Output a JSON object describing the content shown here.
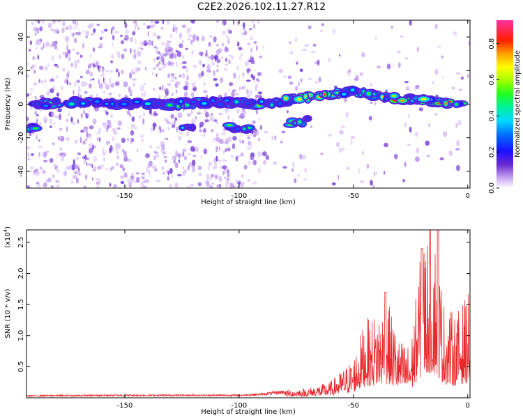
{
  "title": "C2E2.2026.102.11.27.R12",
  "chart_data": [
    {
      "type": "heatmap",
      "title": "C2E2.2026.102.11.27.R12",
      "xlabel": "Height of straight line (km)",
      "ylabel": "Frequency (Hz)",
      "xlim": [
        -193,
        1
      ],
      "ylim": [
        -50,
        50
      ],
      "xticks": [
        -150,
        -100,
        -50,
        0
      ],
      "yticks": [
        -40,
        -20,
        0,
        20,
        40
      ],
      "colorbar": {
        "label": "Normalized spectral amplitude",
        "range": [
          0,
          0.93
        ],
        "ticks": [
          0.0,
          0.2,
          0.4,
          0.6,
          0.8
        ]
      },
      "bands": [
        {
          "name": "main-band",
          "x": [
            -190,
            -170,
            -150,
            -130,
            -110,
            -90,
            -80,
            -70,
            -60,
            -50,
            -40,
            -30,
            -20,
            -10,
            0
          ],
          "freq": [
            0,
            1,
            0,
            0,
            1,
            0,
            2,
            4,
            6,
            8,
            5,
            3,
            2,
            1,
            0
          ]
        },
        {
          "name": "lower-band",
          "x": [
            -193,
            -188,
            -125,
            -120,
            -105,
            -95,
            -78,
            -70
          ],
          "freq": [
            -14,
            -14,
            -14,
            -14,
            -14,
            -14,
            -11,
            -10
          ]
        }
      ]
    },
    {
      "type": "line",
      "xlabel": "Height of straight line (km)",
      "ylabel": "SNR (10 * v/v)",
      "yscale_note": "(x10",
      "yscale_exp": "4",
      "xlim": [
        -193,
        1
      ],
      "ylim": [
        0,
        2.7
      ],
      "xticks": [
        -150,
        -100,
        -50,
        0
      ],
      "yticks": [
        0.5,
        1.0,
        1.5,
        2.0,
        2.5
      ],
      "series": [
        {
          "name": "SNR",
          "color": "#e8282b",
          "x": [
            -193,
            -150,
            -100,
            -90,
            -80,
            -70,
            -60,
            -50,
            -45,
            -40,
            -35,
            -30,
            -25,
            -20,
            -15,
            -10,
            -5,
            0
          ],
          "envelope": [
            0.04,
            0.05,
            0.05,
            0.07,
            0.12,
            0.15,
            0.25,
            0.6,
            1.2,
            1.3,
            1.5,
            0.9,
            0.8,
            2.4,
            2.7,
            1.4,
            1.3,
            1.6
          ]
        }
      ]
    }
  ]
}
